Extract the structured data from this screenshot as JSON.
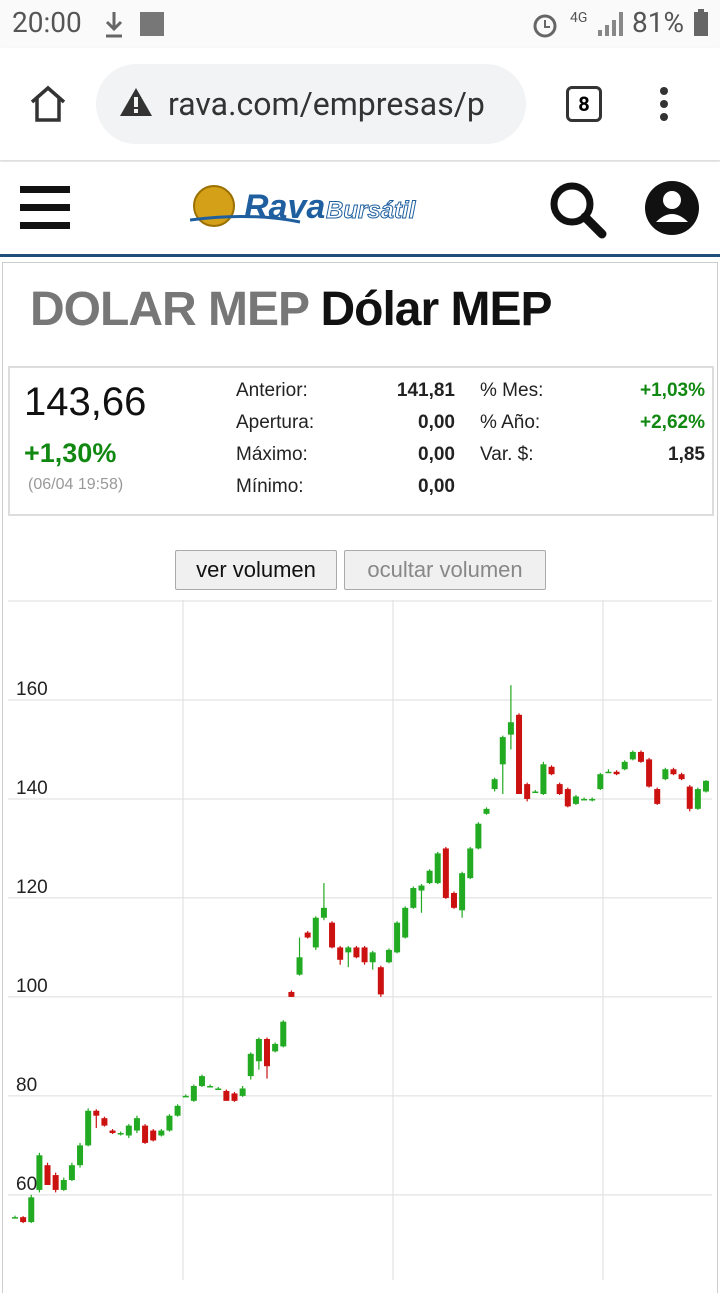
{
  "status_bar": {
    "time": "20:00",
    "network": "4G",
    "battery": "81%"
  },
  "browser": {
    "url": "rava.com/empresas/p",
    "tabs": "8"
  },
  "site": {
    "logo": "Rava",
    "logo_sub": "Bursátil"
  },
  "header": {
    "ticker": "DOLAR MEP",
    "name": "Dólar MEP"
  },
  "quote": {
    "price": "143,66",
    "change": "+1,30%",
    "time": "(06/04 19:58)",
    "rows": [
      [
        "Anterior:",
        "141,81",
        "% Mes:",
        "+1,03%"
      ],
      [
        "Apertura:",
        "0,00",
        "% Año:",
        "+2,62%"
      ],
      [
        "Máximo:",
        "0,00",
        "Var. $:",
        "1,85"
      ],
      [
        "Mínimo:",
        "0,00"
      ]
    ]
  },
  "buttons": {
    "show": "ver volumen",
    "hide": "ocultar volumen"
  },
  "chart_data": {
    "type": "candlestick",
    "up_color": "#22aa22",
    "down_color": "#cc1111",
    "grid": true,
    "ylim": [
      42.8,
      180.2
    ],
    "yticks": [
      60,
      80,
      100,
      120,
      140,
      160
    ],
    "open": [
      55.5,
      55.5,
      54.5,
      61,
      66,
      64,
      61,
      63,
      66,
      70,
      77,
      75.5,
      73,
      72.5,
      72,
      73,
      74,
      73,
      72,
      73,
      76,
      80,
      79,
      82,
      82,
      81.5,
      81,
      80.5,
      80,
      84,
      87,
      91.5,
      89,
      90,
      101,
      104.5,
      113,
      110,
      116,
      115,
      110,
      109,
      110,
      110,
      107,
      106,
      107,
      109,
      112,
      118,
      121.5,
      123,
      123,
      130,
      121,
      117.5,
      124,
      130,
      137,
      142,
      147,
      153,
      157,
      143,
      141.5,
      141,
      146.5,
      143,
      142,
      139,
      140,
      140,
      142,
      145.5,
      145.5,
      146,
      148,
      149.5,
      148,
      142,
      144,
      146,
      145,
      142.5,
      138,
      141.5
    ],
    "high": [
      55.8,
      55.7,
      60,
      68.5,
      66.5,
      64.5,
      63.5,
      66.5,
      70.5,
      77.5,
      77.3,
      75.8,
      73.3,
      72.8,
      74.3,
      76,
      74.3,
      73.3,
      73.3,
      76.3,
      78.3,
      80.3,
      82.3,
      84.3,
      82.3,
      81.8,
      81.3,
      80.8,
      82,
      88.8,
      91.8,
      91.8,
      90.8,
      95.3,
      101.3,
      112,
      113.3,
      116.3,
      123,
      115.3,
      110.3,
      110.3,
      110.3,
      110.3,
      109.3,
      106.3,
      109.8,
      115.3,
      118.3,
      122.3,
      122.8,
      125.8,
      129.3,
      130.3,
      121.3,
      125.3,
      130.3,
      135.3,
      138.3,
      144.3,
      152.8,
      163,
      157.3,
      143.3,
      141.8,
      147.5,
      146.8,
      143.3,
      142.3,
      140.8,
      140.3,
      140.3,
      145.3,
      146,
      145.8,
      147.8,
      149.8,
      149.8,
      148.3,
      142.3,
      146.3,
      146.3,
      145.3,
      142.8,
      142.3,
      143.8
    ],
    "low": [
      55.3,
      54.3,
      54.3,
      60.5,
      62,
      60.5,
      60.8,
      62.8,
      65.5,
      69.8,
      73.5,
      73.8,
      72.3,
      72,
      71.5,
      72.5,
      70.3,
      70.8,
      71.8,
      72.8,
      75.8,
      79.8,
      78.8,
      81.8,
      81.8,
      81.3,
      79,
      78.8,
      79.8,
      83.3,
      85.3,
      83.5,
      88.8,
      89.8,
      100,
      104.3,
      111.8,
      109.5,
      115.5,
      109.8,
      106.5,
      106,
      107.8,
      106.5,
      105.5,
      100,
      106.8,
      108.8,
      111.8,
      117.8,
      117,
      122.8,
      122.8,
      119.8,
      117.8,
      116,
      123.8,
      129.8,
      136.8,
      141.5,
      141,
      150,
      141,
      139.5,
      141.2,
      140.8,
      144.8,
      140.8,
      138.3,
      138.8,
      139.8,
      139.5,
      141.8,
      145.3,
      144.8,
      145.8,
      147.8,
      147.3,
      142.3,
      138.8,
      143.8,
      144.8,
      143.8,
      137.5,
      137.8,
      141.3
    ],
    "close": [
      55.5,
      54.5,
      59.5,
      68,
      62,
      61,
      63,
      66,
      70,
      77,
      76,
      74,
      72.5,
      72.5,
      74,
      75.5,
      70.5,
      71,
      73,
      76,
      78,
      80,
      82,
      84,
      82,
      81.5,
      79,
      79,
      81.5,
      88.5,
      91.5,
      86,
      90.5,
      95,
      100,
      108,
      112,
      116,
      118,
      110,
      107.5,
      110,
      108,
      107,
      109,
      100.5,
      109.5,
      115,
      118,
      122,
      122.5,
      125.5,
      129,
      120,
      118,
      125,
      130,
      135,
      138,
      144,
      152.5,
      155.5,
      141,
      140,
      141.5,
      147,
      145,
      141,
      138.5,
      140.5,
      140,
      140,
      145,
      145.5,
      145,
      147.5,
      149.5,
      147.5,
      142.5,
      139,
      146,
      145,
      144,
      138,
      142,
      143.66
    ]
  }
}
